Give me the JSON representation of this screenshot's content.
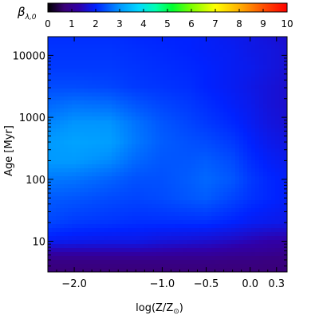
{
  "chart_data": {
    "type": "heatmap",
    "title": "",
    "xlabel": "log(Z/Z",
    "xlabel_sun_symbol": "⊙",
    "xlabel_close": ")",
    "ylabel": "Age [Myr]",
    "x_scale": "linear",
    "y_scale": "log",
    "xlim": [
      -2.3,
      0.42
    ],
    "ylim": [
      3.2,
      20000
    ],
    "x_ticks": [
      -2.0,
      -1.0,
      -0.5,
      0.0,
      0.3
    ],
    "x_tick_labels": [
      "−2.0",
      "−1.0",
      "−0.5",
      "0.0",
      "0.3"
    ],
    "y_ticks": [
      10,
      100,
      1000,
      10000
    ],
    "y_tick_labels": [
      "10",
      "100",
      "1000",
      "10000"
    ],
    "colorbar": {
      "title": "β",
      "title_subscript": "λ,0",
      "range": [
        0,
        10
      ],
      "ticks": [
        0,
        1,
        2,
        3,
        4,
        5,
        6,
        7,
        8,
        9,
        10
      ],
      "tick_labels": [
        "0",
        "1",
        "2",
        "3",
        "4",
        "5",
        "6",
        "7",
        "8",
        "9",
        "10"
      ],
      "colormap": [
        [
          0.0,
          "#000000"
        ],
        [
          0.07,
          "#3a0078"
        ],
        [
          0.13,
          "#3000a8"
        ],
        [
          0.2,
          "#0022ff"
        ],
        [
          0.3,
          "#0096ff"
        ],
        [
          0.38,
          "#00d8ff"
        ],
        [
          0.45,
          "#00ffb0"
        ],
        [
          0.52,
          "#00ff30"
        ],
        [
          0.6,
          "#7cff00"
        ],
        [
          0.7,
          "#ffff00"
        ],
        [
          0.8,
          "#ffb000"
        ],
        [
          0.9,
          "#ff5000"
        ],
        [
          1.0,
          "#ff0000"
        ]
      ]
    },
    "z_rows_log_age": [
      0.5,
      0.7,
      0.85,
      1.0,
      1.3,
      1.7,
      2.0,
      2.3,
      2.6,
      2.9,
      3.2,
      3.5,
      3.8,
      4.1,
      4.3
    ],
    "z_cols_logZ": [
      -2.3,
      -2.0,
      -1.6,
      -1.3,
      -1.0,
      -0.7,
      -0.5,
      -0.2,
      0.0,
      0.2,
      0.42
    ],
    "z_values": [
      [
        0.7,
        0.7,
        0.7,
        0.7,
        0.7,
        0.7,
        0.7,
        0.7,
        0.7,
        0.7,
        0.7
      ],
      [
        0.9,
        0.9,
        0.9,
        0.9,
        0.9,
        0.9,
        0.9,
        0.85,
        0.85,
        0.8,
        0.8
      ],
      [
        1.4,
        1.4,
        1.4,
        1.4,
        1.35,
        1.3,
        1.3,
        1.2,
        1.15,
        1.1,
        1.0
      ],
      [
        1.9,
        1.85,
        1.8,
        1.8,
        1.7,
        1.65,
        1.6,
        1.5,
        1.4,
        1.3,
        1.25
      ],
      [
        2.3,
        2.2,
        2.15,
        2.1,
        2.1,
        2.1,
        2.1,
        2.0,
        1.9,
        1.85,
        1.8
      ],
      [
        2.5,
        2.45,
        2.35,
        2.3,
        2.35,
        2.45,
        2.5,
        2.3,
        2.15,
        2.05,
        1.95
      ],
      [
        2.75,
        2.7,
        2.55,
        2.4,
        2.4,
        2.5,
        2.6,
        2.45,
        2.2,
        2.05,
        1.95
      ],
      [
        3.05,
        3.05,
        2.9,
        2.6,
        2.45,
        2.45,
        2.5,
        2.35,
        2.1,
        1.95,
        1.85
      ],
      [
        3.05,
        3.15,
        3.1,
        2.75,
        2.5,
        2.4,
        2.35,
        2.2,
        2.0,
        1.85,
        1.75
      ],
      [
        2.85,
        3.0,
        3.0,
        2.7,
        2.45,
        2.3,
        2.2,
        2.05,
        1.9,
        1.75,
        1.65
      ],
      [
        2.6,
        2.7,
        2.65,
        2.45,
        2.3,
        2.2,
        2.1,
        1.95,
        1.85,
        1.7,
        1.6
      ],
      [
        2.35,
        2.35,
        2.3,
        2.2,
        2.15,
        2.1,
        2.0,
        1.9,
        1.8,
        1.7,
        1.6
      ],
      [
        2.2,
        2.2,
        2.2,
        2.15,
        2.1,
        2.05,
        2.0,
        1.9,
        1.85,
        1.75,
        1.65
      ],
      [
        2.15,
        2.15,
        2.15,
        2.1,
        2.05,
        2.0,
        1.95,
        1.9,
        1.8,
        1.75,
        1.65
      ],
      [
        2.1,
        2.1,
        2.1,
        2.05,
        2.0,
        2.0,
        1.95,
        1.85,
        1.8,
        1.7,
        1.6
      ]
    ]
  }
}
